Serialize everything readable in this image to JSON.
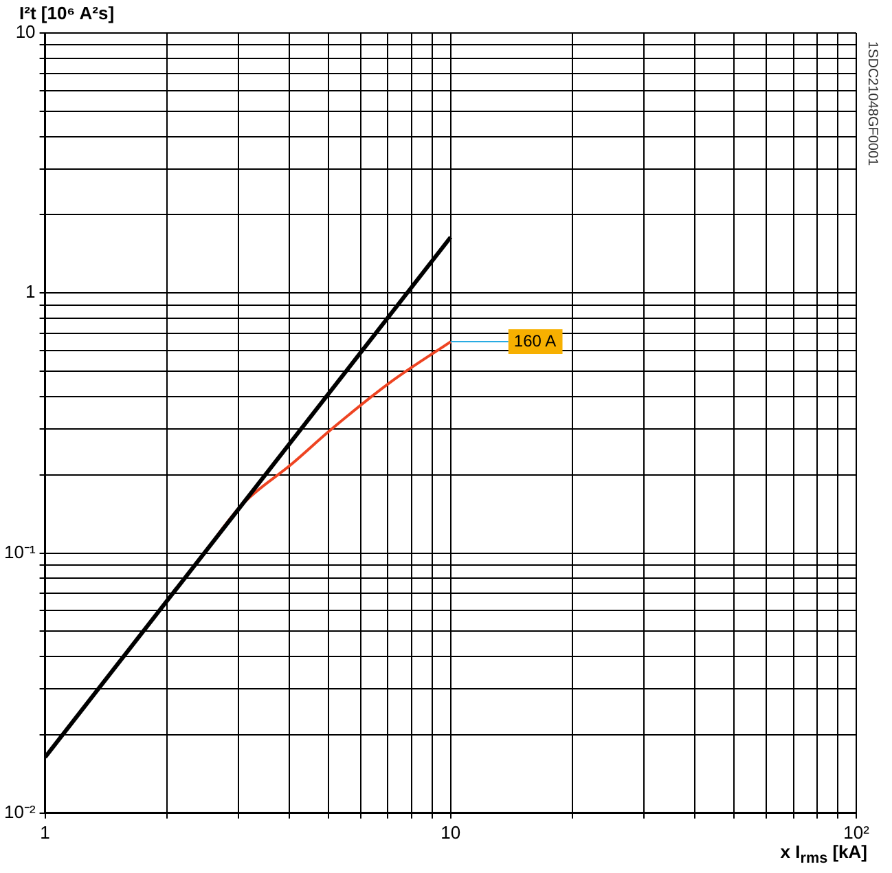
{
  "chart_data": {
    "type": "line",
    "xlabel": "x I$_{rms}$ [kA]",
    "ylabel": "I²t [10⁶ A²s]",
    "log": "xy",
    "grid": true,
    "legend": false,
    "marker": "none",
    "line_style": "solid",
    "xlim": [
      1,
      100
    ],
    "ylim": [
      0.01,
      10
    ],
    "xticks": [
      1,
      {
        "value": 2,
        "label": null
      },
      {
        "value": 3,
        "label": null
      },
      {
        "value": 4,
        "label": null
      },
      {
        "value": 5,
        "label": null
      },
      {
        "value": 6,
        "label": null
      },
      {
        "value": 7,
        "label": null
      },
      {
        "value": 8,
        "label": null
      },
      {
        "value": 9,
        "label": null
      },
      10,
      {
        "value": 20,
        "label": null
      },
      {
        "value": 30,
        "label": null
      },
      {
        "value": 40,
        "label": null
      },
      {
        "value": 50,
        "label": null
      },
      {
        "value": 60,
        "label": null
      },
      {
        "value": 70,
        "label": null
      },
      {
        "value": 80,
        "label": null
      },
      {
        "value": 90,
        "label": null
      },
      {
        "value": 100,
        "label": "10²"
      }
    ],
    "yticks": [
      {
        "value": 0.01,
        "label": "10⁻²"
      },
      {
        "value": 0.02,
        "label": null
      },
      {
        "value": 0.03,
        "label": null
      },
      {
        "value": 0.04,
        "label": null
      },
      {
        "value": 0.05,
        "label": null
      },
      {
        "value": 0.06,
        "label": null
      },
      {
        "value": 0.07,
        "label": null
      },
      {
        "value": 0.08,
        "label": null
      },
      {
        "value": 0.09,
        "label": null
      },
      {
        "value": 0.1,
        "label": "10⁻¹"
      },
      {
        "value": 0.2,
        "label": null
      },
      {
        "value": 0.3,
        "label": null
      },
      {
        "value": 0.4,
        "label": null
      },
      {
        "value": 0.5,
        "label": null
      },
      {
        "value": 0.6,
        "label": null
      },
      {
        "value": 0.7,
        "label": null
      },
      {
        "value": 0.8,
        "label": null
      },
      {
        "value": 0.9,
        "label": null
      },
      1,
      {
        "value": 2,
        "label": null
      },
      {
        "value": 3,
        "label": null
      },
      {
        "value": 4,
        "label": null
      },
      {
        "value": 5,
        "label": null
      },
      {
        "value": 6,
        "label": null
      },
      {
        "value": 7,
        "label": null
      },
      {
        "value": 8,
        "label": null
      },
      {
        "value": 9,
        "label": null
      },
      10
    ],
    "series": [
      {
        "color": "#000000",
        "x": [
          1,
          10
        ],
        "values": [
          0.0164,
          1.64
        ]
      },
      {
        "color": "#ee4422",
        "x": [
          2.4,
          3.04,
          4.07,
          5.09,
          7.09,
          10
        ],
        "values": [
          0.094,
          0.152,
          0.221,
          0.3,
          0.453,
          0.65
        ]
      }
    ],
    "annotations": [
      {
        "text": "160 A",
        "x": 10,
        "y": 0.65
      },
      "1SDC21048GF0001"
    ]
  }
}
